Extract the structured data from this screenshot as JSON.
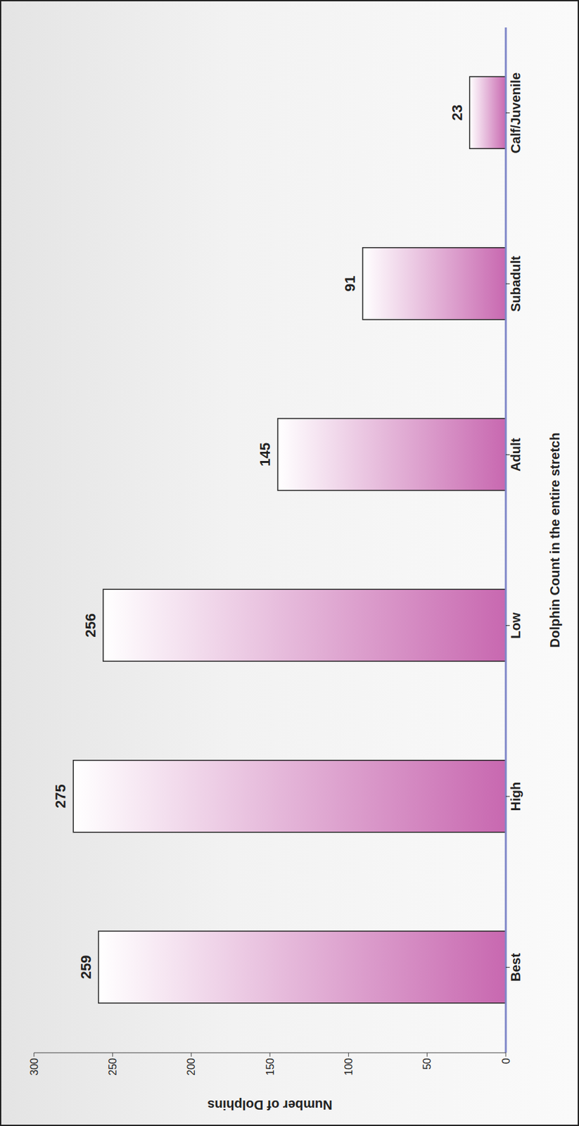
{
  "chart_data": {
    "type": "bar",
    "categories": [
      "Best",
      "High",
      "Low",
      "Adult",
      "Subadult",
      "Calf/Juvenile"
    ],
    "values": [
      259,
      275,
      256,
      145,
      91,
      23
    ],
    "color": "#c868b0",
    "ylim": [
      0,
      300
    ],
    "yticks": [
      0,
      50,
      100,
      150,
      200,
      250,
      300
    ],
    "xlabel": "Dolphin Count in the entire stretch",
    "ylabel": "Number of Dolphins",
    "data_labels": true,
    "grid": false
  }
}
